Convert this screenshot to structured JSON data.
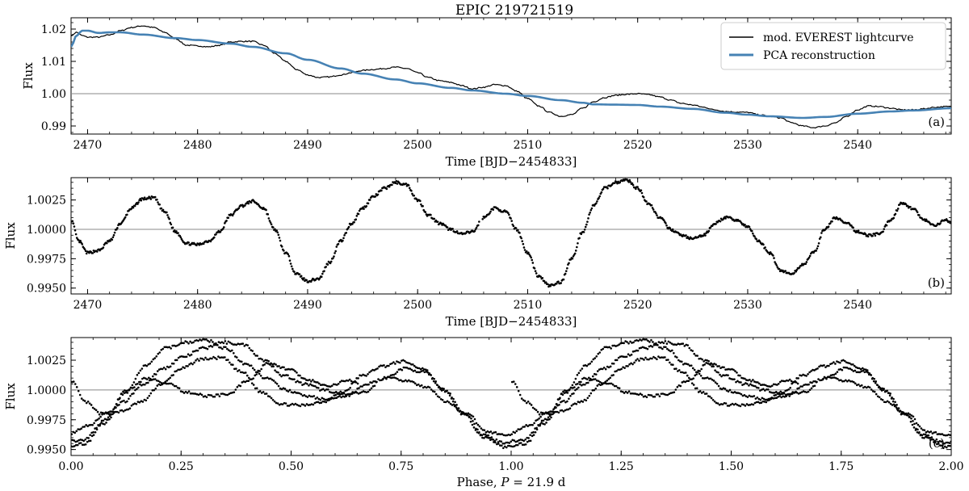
{
  "chart_data": [
    {
      "id": "a",
      "type": "line",
      "title": "EPIC 219721519",
      "panel_label": "(a)",
      "xlabel": "Time [BJD−2454833]",
      "ylabel": "Flux",
      "xlim": [
        2468.5,
        2548.5
      ],
      "ylim": [
        0.9875,
        1.0235
      ],
      "xticks": [
        2470,
        2480,
        2490,
        2500,
        2510,
        2520,
        2530,
        2540
      ],
      "yticks": [
        0.99,
        1.0,
        1.01,
        1.02
      ],
      "ytick_labels": [
        "0.99",
        "1.00",
        "1.01",
        "1.02"
      ],
      "hline": 1.0,
      "legend": {
        "position": "top-right",
        "entries": [
          "mod. EVEREST lightcurve",
          "PCA reconstruction"
        ]
      },
      "series": [
        {
          "name": "mod. EVEREST lightcurve",
          "color": "#000000",
          "x": [
            2468.5,
            2469,
            2469.5,
            2470,
            2471,
            2472,
            2473,
            2474,
            2475,
            2476,
            2477,
            2478,
            2479,
            2480,
            2481,
            2482,
            2483,
            2484,
            2485,
            2486,
            2487,
            2488,
            2489,
            2490,
            2491,
            2492,
            2493,
            2494,
            2495,
            2496,
            2497,
            2498,
            2499,
            2500,
            2501,
            2502,
            2503,
            2504,
            2505,
            2506,
            2507,
            2508,
            2509,
            2510,
            2511,
            2512,
            2513,
            2514,
            2515,
            2516,
            2517,
            2518,
            2519,
            2520,
            2521,
            2522,
            2523,
            2524,
            2525,
            2526,
            2527,
            2528,
            2529,
            2530,
            2531,
            2532,
            2533,
            2534,
            2535,
            2536,
            2537,
            2538,
            2539,
            2540,
            2541,
            2542,
            2543,
            2544,
            2545,
            2546,
            2547,
            2548,
            2548.5
          ],
          "y": [
            1.018,
            1.019,
            1.018,
            1.0175,
            1.0175,
            1.0182,
            1.0195,
            1.0205,
            1.021,
            1.0205,
            1.019,
            1.017,
            1.015,
            1.0148,
            1.0145,
            1.015,
            1.016,
            1.0162,
            1.0162,
            1.015,
            1.0125,
            1.01,
            1.0075,
            1.0058,
            1.005,
            1.0052,
            1.0058,
            1.0065,
            1.0072,
            1.0075,
            1.0078,
            1.0082,
            1.0078,
            1.0065,
            1.005,
            1.004,
            1.0035,
            1.0025,
            1.0015,
            1.002,
            1.0028,
            1.0025,
            1.0008,
            0.9985,
            0.9962,
            0.9942,
            0.993,
            0.9935,
            0.9955,
            0.9975,
            0.9988,
            0.9995,
            0.9998,
            1.0,
            0.9997,
            0.999,
            0.998,
            0.997,
            0.9965,
            0.9958,
            0.995,
            0.9945,
            0.9943,
            0.9942,
            0.9935,
            0.993,
            0.9925,
            0.991,
            0.99,
            0.9895,
            0.99,
            0.991,
            0.993,
            0.995,
            0.9962,
            0.996,
            0.9955,
            0.995,
            0.995,
            0.9953,
            0.9958,
            0.996,
            0.996
          ]
        },
        {
          "name": "PCA reconstruction",
          "color": "#4682b4",
          "x": [
            2468.5,
            2469,
            2469.5,
            2470,
            2471,
            2472,
            2473,
            2475,
            2478,
            2480,
            2483,
            2485,
            2488,
            2490,
            2493,
            2495,
            2498,
            2500,
            2503,
            2505,
            2508,
            2510,
            2513,
            2515,
            2516,
            2518,
            2520,
            2522,
            2525,
            2528,
            2530,
            2532,
            2535,
            2537,
            2540,
            2543,
            2545,
            2548.5
          ],
          "y": [
            1.0145,
            1.018,
            1.0195,
            1.0195,
            1.0188,
            1.019,
            1.019,
            1.0183,
            1.0172,
            1.0166,
            1.0155,
            1.0145,
            1.0125,
            1.0105,
            1.0078,
            1.0062,
            1.0044,
            1.0032,
            1.0018,
            1.001,
            1.0,
            0.9993,
            0.998,
            0.9972,
            0.9967,
            0.9966,
            0.9965,
            0.996,
            0.9953,
            0.9941,
            0.9935,
            0.993,
            0.9925,
            0.9928,
            0.9938,
            0.9945,
            0.9948,
            0.9955
          ]
        }
      ]
    },
    {
      "id": "b",
      "type": "scatter",
      "panel_label": "(b)",
      "xlabel": "Time [BJD−2454833]",
      "ylabel": "Flux",
      "xlim": [
        2468.5,
        2548.5
      ],
      "ylim": [
        0.9945,
        1.0044
      ],
      "xticks": [
        2470,
        2480,
        2490,
        2500,
        2510,
        2520,
        2530,
        2540
      ],
      "yticks": [
        0.995,
        0.9975,
        1.0,
        1.0025
      ],
      "ytick_labels": [
        "0.9950",
        "0.9975",
        "1.0000",
        "1.0025"
      ],
      "hline": 1.0,
      "color": "#000000",
      "knots_x": [
        2468.5,
        2469.2,
        2470,
        2471,
        2472,
        2473,
        2474,
        2475,
        2476,
        2477,
        2478,
        2479,
        2480,
        2481,
        2482,
        2483,
        2484,
        2485,
        2486,
        2487,
        2488,
        2489,
        2490,
        2491,
        2492,
        2493,
        2494,
        2495,
        2496,
        2497,
        2498,
        2499,
        2500,
        2501,
        2502,
        2503,
        2504,
        2505,
        2506,
        2507,
        2508,
        2509,
        2510,
        2511,
        2512,
        2513,
        2514,
        2515,
        2516,
        2517,
        2518,
        2519,
        2520,
        2521,
        2522,
        2523,
        2524,
        2525,
        2526,
        2527,
        2528,
        2529,
        2530,
        2531,
        2532,
        2533,
        2534,
        2535,
        2536,
        2537,
        2538,
        2539,
        2540,
        2541,
        2542,
        2543,
        2544,
        2545,
        2546,
        2547,
        2548,
        2548.5
      ],
      "knots_y": [
        1.0008,
        0.999,
        0.998,
        0.9982,
        0.999,
        1.0005,
        1.0018,
        1.0026,
        1.0027,
        1.0015,
        0.9998,
        0.9988,
        0.9987,
        0.999,
        0.9998,
        1.0012,
        1.002,
        1.0024,
        1.0018,
        1.0,
        0.998,
        0.9962,
        0.9956,
        0.9958,
        0.9972,
        0.999,
        1.0005,
        1.0018,
        1.0028,
        1.0035,
        1.004,
        1.0038,
        1.0025,
        1.0012,
        1.0005,
        1.0,
        0.9996,
        0.9998,
        1.001,
        1.0018,
        1.0015,
        1.0,
        0.998,
        0.996,
        0.9952,
        0.9955,
        0.9975,
        0.9998,
        1.002,
        1.0035,
        1.004,
        1.0042,
        1.0035,
        1.0022,
        1.001,
        1.0,
        0.9995,
        0.9992,
        0.9995,
        1.0005,
        1.001,
        1.0008,
        1.0002,
        0.999,
        0.998,
        0.9965,
        0.9962,
        0.997,
        0.998,
        1.0,
        1.001,
        1.0005,
        0.9998,
        0.9995,
        0.9996,
        1.0008,
        1.0022,
        1.0018,
        1.0008,
        1.0003,
        1.0008,
        1.0005
      ]
    },
    {
      "id": "c",
      "type": "scatter",
      "panel_label": "(c)",
      "xlabel": "Phase, P = 21.9 d",
      "xlabel_parts": {
        "prefix": "Phase, ",
        "var": "P",
        "suffix": " = 21.9 d"
      },
      "ylabel": "Flux",
      "period_days": 21.9,
      "t0": 2468.5,
      "xlim": [
        0.0,
        2.0
      ],
      "ylim": [
        0.9945,
        1.0044
      ],
      "xticks": [
        0.0,
        0.25,
        0.5,
        0.75,
        1.0,
        1.25,
        1.5,
        1.75,
        2.0
      ],
      "xtick_labels": [
        "0.00",
        "0.25",
        "0.50",
        "0.75",
        "1.00",
        "1.25",
        "1.50",
        "1.75",
        "2.00"
      ],
      "yticks": [
        0.995,
        0.9975,
        1.0,
        1.0025
      ],
      "ytick_labels": [
        "0.9950",
        "0.9975",
        "1.0000",
        "1.0025"
      ],
      "hline": 1.0,
      "color": "#000000",
      "note": "phase-folded points of panel (b), shown twice (phase and phase+1)"
    }
  ]
}
